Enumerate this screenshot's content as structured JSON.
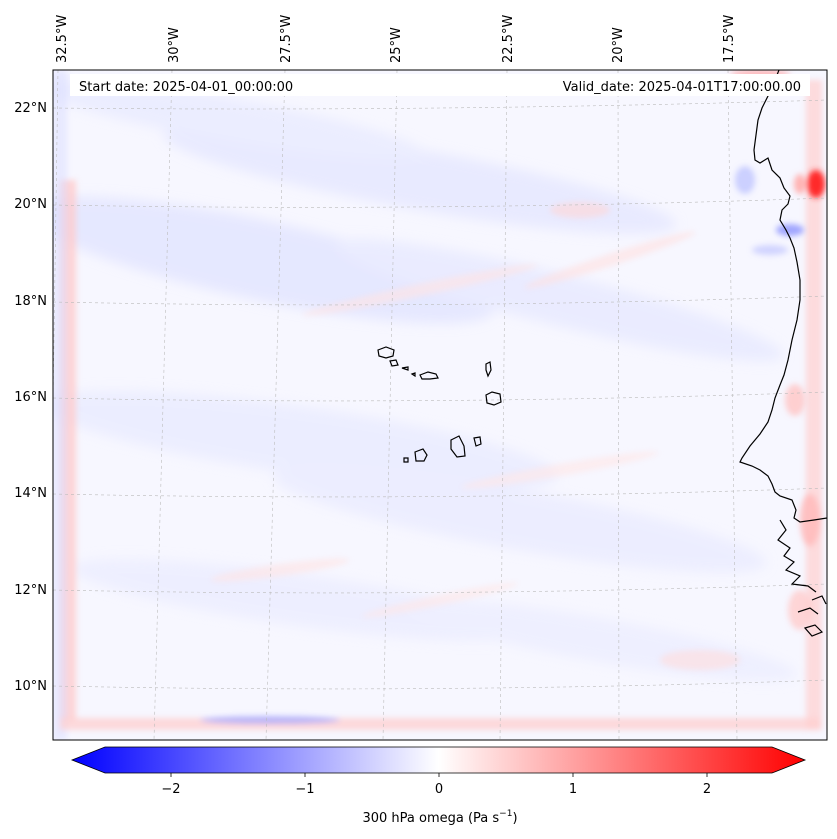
{
  "header": {
    "start_date": "Start date: 2025-04-01_00:00:00",
    "valid_date": "Valid_date: 2025-04-01T17:00:00.00"
  },
  "map": {
    "lon_labels": [
      "32.5°W",
      "30°W",
      "27.5°W",
      "25°W",
      "22.5°W",
      "20°W",
      "17.5°W"
    ],
    "lat_labels": [
      "22°N",
      "20°N",
      "18°N",
      "16°N",
      "14°N",
      "12°N",
      "10°N"
    ],
    "gridlines": true,
    "features": [
      "Cape Verde islands",
      "West African coastline"
    ]
  },
  "colorbar": {
    "label_main": "300 hPa omega (Pa s",
    "label_exp": "−1",
    "label_close": ")",
    "ticks": [
      "−2",
      "−1",
      "0",
      "1",
      "2"
    ],
    "range": [
      -2.6,
      2.6
    ],
    "colormap": "bwr",
    "colors": {
      "low": "#0000ff",
      "mid": "#ffffff",
      "high": "#ff0000"
    },
    "extend": "both"
  }
}
